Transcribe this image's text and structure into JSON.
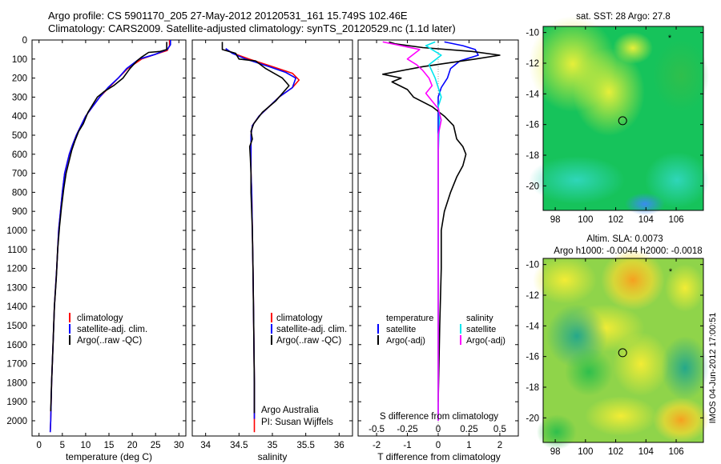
{
  "header": {
    "line1": "Argo profile: CS 5901170_205 27-May-2012 20120531_161 15.749S 102.46E",
    "line2": "Climatology: CARS2009. Satellite-adjusted climatology: synTS_20120529.nc (1.1d later)"
  },
  "colors": {
    "climatology": "#ff0000",
    "satellite": "#0000ff",
    "argo": "#000000",
    "salinity_satellite": "#00e5ee",
    "salinity_argo": "#ff00ff"
  },
  "depth_ticks": [
    0,
    100,
    200,
    300,
    400,
    500,
    600,
    700,
    800,
    900,
    1000,
    1100,
    1200,
    1300,
    1400,
    1500,
    1600,
    1700,
    1800,
    1900,
    2000
  ],
  "chart_data": [
    {
      "type": "line",
      "name": "temperature-profile",
      "xlabel": "temperature (deg C)",
      "xlim": [
        -1.5,
        31.5
      ],
      "ylim": [
        2080,
        0
      ],
      "xticks": [
        0,
        5,
        10,
        15,
        20,
        25,
        30
      ],
      "legend": [
        "climatology",
        "satellite-adj. clim.",
        "Argo(..raw -QC)"
      ],
      "legend_position": "lower-right",
      "series": [
        {
          "name": "climatology",
          "color": "#ff0000",
          "points": [
            [
              28,
              0
            ],
            [
              28,
              30
            ],
            [
              27.5,
              55
            ],
            [
              25,
              75
            ],
            [
              22,
              100
            ],
            [
              19,
              150
            ],
            [
              17,
              200
            ],
            [
              15,
              250
            ],
            [
              13,
              300
            ],
            [
              11.5,
              350
            ],
            [
              10,
              400
            ],
            [
              9,
              450
            ],
            [
              8,
              500
            ],
            [
              7.2,
              550
            ],
            [
              6.5,
              600
            ],
            [
              6,
              650
            ],
            [
              5.5,
              700
            ],
            [
              5,
              800
            ],
            [
              4.6,
              900
            ],
            [
              4.2,
              1000
            ],
            [
              3.8,
              1200
            ],
            [
              3.3,
              1400
            ],
            [
              3,
              1600
            ],
            [
              2.7,
              1800
            ],
            [
              2.5,
              2000
            ],
            [
              2.4,
              2060
            ]
          ]
        },
        {
          "name": "satellite-adj. clim.",
          "color": "#0000ff",
          "points": [
            [
              28.2,
              0
            ],
            [
              28.2,
              25
            ],
            [
              27.5,
              50
            ],
            [
              25,
              75
            ],
            [
              21.5,
              100
            ],
            [
              18.8,
              150
            ],
            [
              17,
              200
            ],
            [
              14.8,
              250
            ],
            [
              13,
              300
            ],
            [
              11.5,
              350
            ],
            [
              10,
              400
            ],
            [
              9,
              450
            ],
            [
              8,
              500
            ],
            [
              7.2,
              550
            ],
            [
              6.5,
              600
            ],
            [
              6,
              650
            ],
            [
              5.5,
              700
            ],
            [
              5,
              800
            ],
            [
              4.6,
              900
            ],
            [
              4.2,
              1000
            ],
            [
              3.8,
              1200
            ],
            [
              3.3,
              1400
            ],
            [
              3,
              1600
            ],
            [
              2.7,
              1800
            ],
            [
              2.5,
              2000
            ],
            [
              2.4,
              2060
            ]
          ]
        },
        {
          "name": "Argo(..raw -QC)",
          "color": "#000000",
          "points": [
            [
              27.4,
              10
            ],
            [
              27.4,
              50
            ],
            [
              26,
              60
            ],
            [
              23.5,
              65
            ],
            [
              22,
              90
            ],
            [
              21,
              110
            ],
            [
              19.5,
              150
            ],
            [
              18,
              200
            ],
            [
              16,
              240
            ],
            [
              14,
              270
            ],
            [
              12.5,
              300
            ],
            [
              11.5,
              340
            ],
            [
              10.5,
              380
            ],
            [
              9.5,
              440
            ],
            [
              8.5,
              480
            ],
            [
              7.7,
              530
            ],
            [
              7,
              580
            ],
            [
              6.4,
              640
            ],
            [
              5.8,
              700
            ],
            [
              5.3,
              780
            ],
            [
              4.8,
              880
            ],
            [
              4.4,
              980
            ],
            [
              4,
              1100
            ],
            [
              3.7,
              1250
            ],
            [
              3.3,
              1400
            ],
            [
              3,
              1600
            ],
            [
              2.7,
              1800
            ],
            [
              2.5,
              1950
            ]
          ]
        }
      ]
    },
    {
      "type": "line",
      "name": "salinity-profile",
      "xlabel": "salinity",
      "xlim": [
        33.8,
        36.2
      ],
      "ylim": [
        2080,
        0
      ],
      "xticks": [
        34,
        34.5,
        35,
        35.5,
        36
      ],
      "legend": [
        "climatology",
        "satellite-adj. clim.",
        "Argo(..raw -QC)"
      ],
      "legend_position": "lower-right",
      "annotations": [
        "Argo Australia",
        "PI: Susan Wijffels"
      ],
      "series": [
        {
          "name": "climatology",
          "color": "#ff0000",
          "points": [
            [
              34.3,
              50
            ],
            [
              34.45,
              75
            ],
            [
              34.65,
              100
            ],
            [
              35,
              140
            ],
            [
              35.3,
              175
            ],
            [
              35.4,
              210
            ],
            [
              35.3,
              250
            ],
            [
              35.1,
              300
            ],
            [
              34.95,
              350
            ],
            [
              34.8,
              400
            ],
            [
              34.7,
              450
            ],
            [
              34.68,
              500
            ],
            [
              34.68,
              600
            ],
            [
              34.68,
              700
            ],
            [
              34.69,
              800
            ],
            [
              34.7,
              1000
            ],
            [
              34.71,
              1200
            ],
            [
              34.72,
              1500
            ],
            [
              34.73,
              1800
            ],
            [
              34.73,
              2060
            ]
          ]
        },
        {
          "name": "satellite-adj. clim.",
          "color": "#0000ff",
          "points": [
            [
              34.3,
              45
            ],
            [
              34.4,
              70
            ],
            [
              34.6,
              100
            ],
            [
              34.95,
              140
            ],
            [
              35.2,
              170
            ],
            [
              35.35,
              200
            ],
            [
              35.3,
              250
            ],
            [
              35.1,
              300
            ],
            [
              34.95,
              350
            ],
            [
              34.8,
              400
            ],
            [
              34.7,
              450
            ],
            [
              34.68,
              500
            ],
            [
              34.68,
              600
            ],
            [
              34.68,
              700
            ],
            [
              34.69,
              800
            ],
            [
              34.7,
              1000
            ],
            [
              34.71,
              1200
            ],
            [
              34.72,
              1500
            ],
            [
              34.73,
              1800
            ],
            [
              34.73,
              1990
            ]
          ]
        },
        {
          "name": "Argo(..raw -QC)",
          "color": "#000000",
          "points": [
            [
              34.25,
              10
            ],
            [
              34.25,
              50
            ],
            [
              34.45,
              70
            ],
            [
              34.5,
              100
            ],
            [
              34.75,
              110
            ],
            [
              34.9,
              150
            ],
            [
              35.15,
              200
            ],
            [
              35.2,
              220
            ],
            [
              35.25,
              240
            ],
            [
              35.15,
              280
            ],
            [
              35.05,
              320
            ],
            [
              34.85,
              380
            ],
            [
              34.72,
              440
            ],
            [
              34.68,
              480
            ],
            [
              34.7,
              520
            ],
            [
              34.66,
              560
            ],
            [
              34.67,
              620
            ],
            [
              34.68,
              700
            ],
            [
              34.68,
              800
            ],
            [
              34.7,
              1000
            ],
            [
              34.71,
              1200
            ],
            [
              34.72,
              1500
            ],
            [
              34.73,
              1800
            ],
            [
              34.73,
              1960
            ]
          ]
        }
      ]
    },
    {
      "type": "line",
      "name": "difference-profile",
      "xlabel": "T difference from climatology",
      "xlabel_top": "S difference from climatology",
      "xlim": [
        -2.6,
        2.6
      ],
      "ylim": [
        2080,
        0
      ],
      "xticks": [
        -2,
        -1,
        0,
        1,
        2
      ],
      "xtick_labels_s": [
        "-0.5",
        "-0.25",
        "0",
        "0.25",
        "0.5"
      ],
      "legend_left_title": "temperature",
      "legend_right_title": "salinity",
      "legend": [
        "satellite",
        "Argo(-adj)",
        "satellite",
        "Argo(-adj)"
      ],
      "series": [
        {
          "name": "satellite",
          "color": "#0000ff",
          "points": [
            [
              0.2,
              10
            ],
            [
              0.8,
              30
            ],
            [
              1.2,
              50
            ],
            [
              1.3,
              80
            ],
            [
              0.7,
              110
            ],
            [
              0.4,
              150
            ],
            [
              0.3,
              200
            ],
            [
              0.1,
              250
            ],
            [
              0,
              300
            ],
            [
              0,
              400
            ],
            [
              0,
              600
            ],
            [
              0,
              2000
            ]
          ]
        },
        {
          "name": "Argo(-adj)",
          "color": "#000000",
          "points": [
            [
              -1.6,
              10
            ],
            [
              -1.4,
              20
            ],
            [
              -0.5,
              40
            ],
            [
              1.1,
              60
            ],
            [
              2.0,
              80
            ],
            [
              1.2,
              100
            ],
            [
              -0.5,
              140
            ],
            [
              -1.8,
              180
            ],
            [
              -1.2,
              200
            ],
            [
              -1.5,
              220
            ],
            [
              -1,
              260
            ],
            [
              -0.8,
              300
            ],
            [
              -0.2,
              350
            ],
            [
              0.2,
              400
            ],
            [
              0.5,
              450
            ],
            [
              0.6,
              520
            ],
            [
              0.8,
              560
            ],
            [
              0.9,
              600
            ],
            [
              0.8,
              660
            ],
            [
              0.6,
              720
            ],
            [
              0.4,
              800
            ],
            [
              0.2,
              900
            ],
            [
              0.1,
              1000
            ],
            [
              0.1,
              1200
            ],
            [
              0.05,
              1500
            ],
            [
              0,
              1900
            ]
          ]
        },
        {
          "name": "satellite",
          "color": "#00e5ee",
          "points": [
            [
              -0.1,
              10
            ],
            [
              -0.4,
              30
            ],
            [
              -0.2,
              50
            ],
            [
              0.1,
              80
            ],
            [
              -0.3,
              130
            ],
            [
              -0.1,
              200
            ],
            [
              0,
              250
            ],
            [
              0.1,
              300
            ],
            [
              0,
              350
            ],
            [
              0.05,
              400
            ],
            [
              0,
              600
            ],
            [
              0,
              2000
            ]
          ]
        },
        {
          "name": "Argo(-adj)",
          "color": "#ff00ff",
          "points": [
            [
              -1.8,
              10
            ],
            [
              -0.6,
              50
            ],
            [
              -1.0,
              100
            ],
            [
              -0.7,
              130
            ],
            [
              -0.5,
              160
            ],
            [
              -0.3,
              200
            ],
            [
              -0.2,
              240
            ],
            [
              -0.4,
              280
            ],
            [
              -0.2,
              320
            ],
            [
              0,
              360
            ],
            [
              0.1,
              420
            ],
            [
              0,
              500
            ],
            [
              0,
              600
            ],
            [
              0,
              2000
            ]
          ]
        }
      ]
    },
    {
      "type": "heatmap",
      "name": "sst-map",
      "title": "sat. SST: 28 Argo: 27.8",
      "xticks": [
        98,
        100,
        102,
        104,
        106
      ],
      "yticks": [
        -10,
        -12,
        -14,
        -16,
        -18,
        -20
      ],
      "xlim": [
        97.2,
        107.8
      ],
      "ylim": [
        -21.6,
        -9.6
      ],
      "argo_position": [
        102.46,
        -15.749
      ]
    },
    {
      "type": "heatmap",
      "name": "sla-map",
      "title": "Altim. SLA: 0.0073",
      "subtitle": "Argo h1000: -0.0044 h2000: -0.0018",
      "xticks": [
        98,
        100,
        102,
        104,
        106
      ],
      "yticks": [
        -10,
        -12,
        -14,
        -16,
        -18,
        -20
      ],
      "xlim": [
        97.2,
        107.8
      ],
      "ylim": [
        -21.6,
        -9.6
      ],
      "argo_position": [
        102.46,
        -15.749
      ]
    }
  ],
  "footer": {
    "stamp": "IMOS 04-Jun-2012 17:00:51"
  }
}
